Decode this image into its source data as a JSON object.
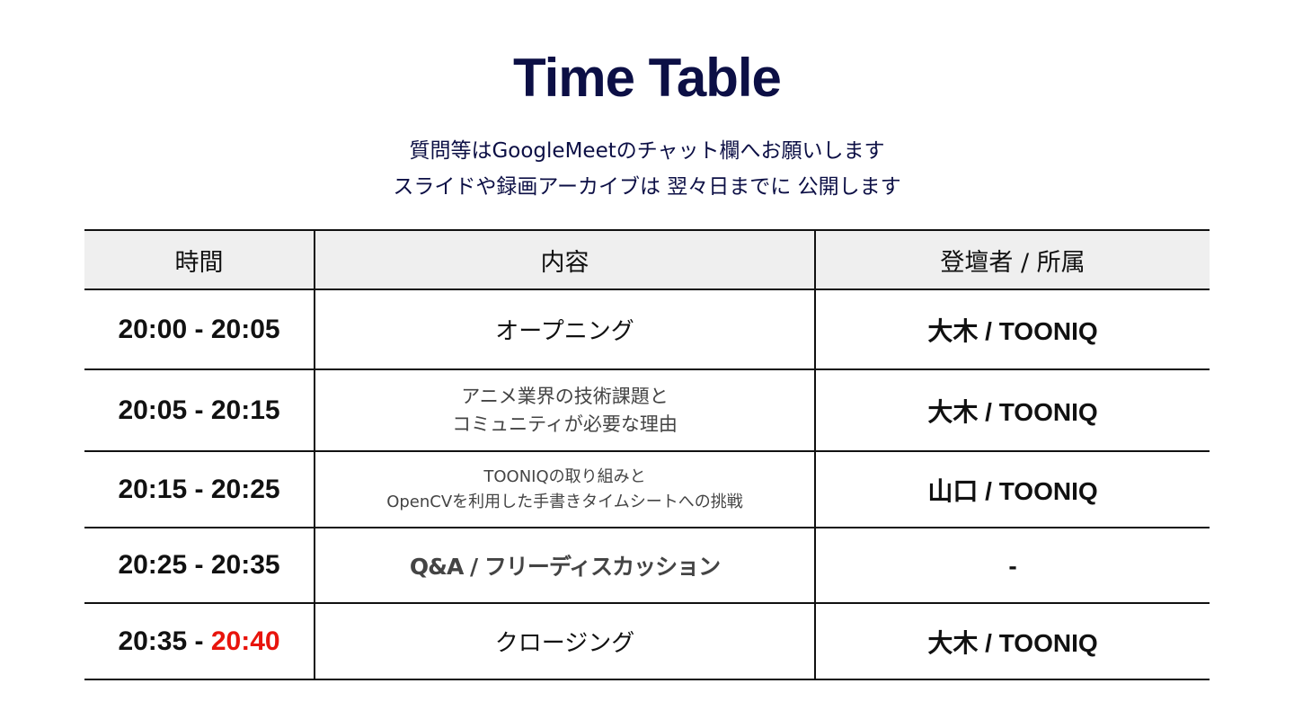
{
  "title": "Time Table",
  "subtitle": [
    "質問等はGoogleMeetのチャット欄へお願いします",
    "スライドや録画アーカイブは 翌々日までに 公開します"
  ],
  "table": {
    "headers": [
      "時間",
      "内容",
      "登壇者 / 所属"
    ],
    "rows": [
      {
        "time_start": "20:00 - ",
        "time_end": "20:05",
        "content": [
          "オープニング"
        ],
        "speaker": "大木 / TOONIQ"
      },
      {
        "time_start": "20:05 - ",
        "time_end": "20:15",
        "content": [
          "アニメ業界の技術課題と",
          "コミュニティが必要な理由"
        ],
        "speaker": "大木 / TOONIQ"
      },
      {
        "time_start": "20:15 - ",
        "time_end": "20:25",
        "content": [
          "TOONIQの取り組みと",
          "OpenCVを利用した手書きタイムシートへの挑戦"
        ],
        "speaker": "山口 / TOONIQ"
      },
      {
        "time_start": "20:25 - ",
        "time_end": "20:35",
        "content": [
          "Q&A / フリーディスカッション"
        ],
        "speaker": "-"
      },
      {
        "time_start": "20:35 - ",
        "time_end": "20:40",
        "content": [
          "クロージング"
        ],
        "speaker": "大木 / TOONIQ"
      }
    ]
  },
  "colors": {
    "title": "#0c0f45",
    "highlight": "#e8140c",
    "header_bg": "#efefef"
  }
}
